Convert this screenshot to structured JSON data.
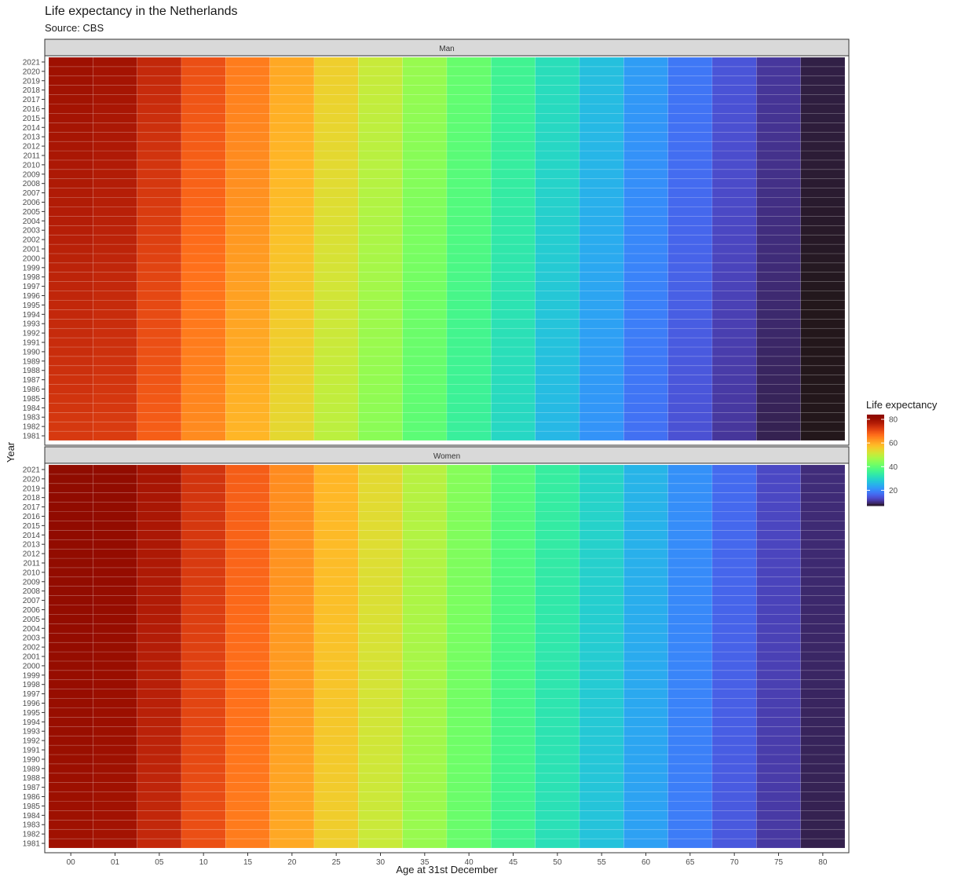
{
  "chart_data": {
    "type": "heatmap",
    "title": "Life expectancy in the Netherlands",
    "subtitle": "Source: CBS",
    "xlabel": "Age at 31st December",
    "ylabel": "Year",
    "legend": {
      "title": "Life expectancy",
      "ticks": [
        20,
        40,
        60,
        80
      ],
      "range": [
        7,
        84
      ],
      "position": "right"
    },
    "ages": [
      "00",
      "01",
      "05",
      "10",
      "15",
      "20",
      "25",
      "30",
      "35",
      "40",
      "45",
      "50",
      "55",
      "60",
      "65",
      "70",
      "75",
      "80"
    ],
    "years": [
      "1981",
      "1982",
      "1983",
      "1984",
      "1985",
      "1986",
      "1987",
      "1988",
      "1989",
      "1990",
      "1991",
      "1992",
      "1993",
      "1994",
      "1995",
      "1996",
      "1997",
      "1998",
      "1999",
      "2000",
      "2001",
      "2002",
      "2003",
      "2004",
      "2005",
      "2006",
      "2007",
      "2008",
      "2009",
      "2010",
      "2011",
      "2012",
      "2013",
      "2014",
      "2015",
      "2016",
      "2017",
      "2018",
      "2019",
      "2020",
      "2021"
    ],
    "series": [
      {
        "name": "Man",
        "values_1981": [
          72.7,
          72.3,
          68.4,
          63.5,
          58.6,
          53.8,
          49.1,
          44.3,
          39.5,
          34.7,
          30.0,
          25.5,
          21.2,
          17.3,
          13.9,
          10.9,
          8.4,
          6.4
        ],
        "values_2021": [
          79.7,
          79.0,
          75.1,
          70.1,
          65.2,
          60.3,
          55.4,
          50.5,
          45.7,
          40.8,
          36.0,
          31.3,
          26.7,
          22.3,
          18.2,
          14.4,
          11.0,
          8.1
        ]
      },
      {
        "name": "Women",
        "values_1981": [
          79.3,
          78.8,
          74.9,
          70.0,
          65.1,
          60.2,
          55.3,
          50.5,
          45.6,
          40.8,
          36.0,
          31.4,
          27.0,
          22.7,
          18.5,
          14.7,
          11.2,
          8.3
        ],
        "values_2021": [
          83.0,
          82.3,
          78.4,
          73.4,
          68.5,
          63.5,
          58.6,
          53.7,
          48.8,
          43.9,
          39.1,
          34.3,
          29.7,
          25.2,
          20.9,
          16.8,
          13.0,
          9.7
        ]
      }
    ]
  }
}
